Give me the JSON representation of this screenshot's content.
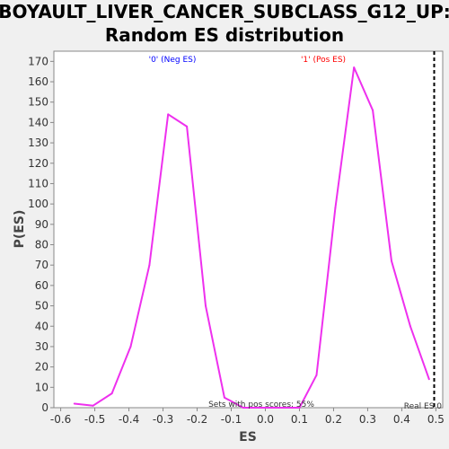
{
  "chart_data": {
    "type": "line",
    "title_line1": "BOYAULT_LIVER_CANCER_SUBCLASS_G12_UP:",
    "title_line2": "Random ES distribution",
    "xlabel": "ES",
    "ylabel": "P(ES)",
    "xlim": [
      -0.62,
      0.52
    ],
    "ylim": [
      0,
      175
    ],
    "xticks": [
      -0.6,
      -0.5,
      -0.4,
      -0.3,
      -0.2,
      -0.1,
      0.0,
      0.1,
      0.2,
      0.3,
      0.4,
      0.5
    ],
    "xtick_labels": [
      "-0.6",
      "-0.5",
      "-0.4",
      "-0.3",
      "-0.2",
      "-0.1",
      "0.0",
      "0.1",
      "0.2",
      "0.3",
      "0.4",
      "0.5"
    ],
    "yticks": [
      0,
      10,
      20,
      30,
      40,
      50,
      60,
      70,
      80,
      90,
      100,
      110,
      120,
      130,
      140,
      150,
      160,
      170
    ],
    "grid": false,
    "series": [
      {
        "color": "#ee30ee",
        "x": [
          -0.56,
          -0.505,
          -0.45,
          -0.395,
          -0.34,
          -0.285,
          -0.23,
          -0.175,
          -0.12,
          -0.065,
          0.1,
          0.15,
          0.205,
          0.26,
          0.315,
          0.37,
          0.425,
          0.48
        ],
        "y": [
          2,
          1,
          7,
          30,
          70,
          144,
          138,
          50,
          5,
          0,
          0,
          16,
          98,
          167,
          146,
          72,
          40,
          14
        ]
      }
    ],
    "real_es": 0.495,
    "real_es_color": "#000000",
    "annotations": {
      "neg_label": "'0' (Neg ES)",
      "neg_color": "#0000ff",
      "pos_label": "'1' (Pos ES)",
      "pos_color": "#ff0000",
      "pos_scores_text": "Sets with pos scores: 55%",
      "real_es_text": "Real ES 0"
    }
  }
}
